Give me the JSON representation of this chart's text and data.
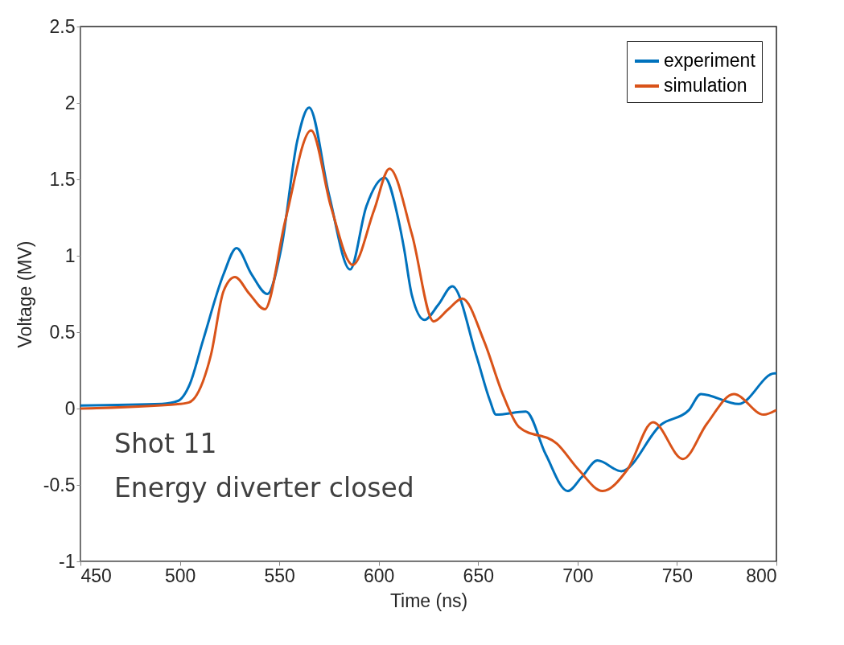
{
  "chart_data": {
    "type": "line",
    "xlabel": "Time (ns)",
    "ylabel": "Voltage (MV)",
    "xlim": [
      450,
      800
    ],
    "xticks": [
      450,
      500,
      550,
      600,
      650,
      700,
      750,
      800
    ],
    "ylim": [
      -1,
      2.5
    ],
    "yticks": [
      -1,
      -0.5,
      0,
      0.5,
      1,
      1.5,
      2,
      2.5
    ],
    "grid": false,
    "legend": "top right",
    "line_style": "solid",
    "marker": "none",
    "annotations": [
      "Shot 11",
      "Energy diverter closed"
    ],
    "series": [
      {
        "name": "experiment",
        "color": "#0072bd",
        "x": [
          450,
          491,
          499,
          505,
          511.5,
          522,
          528.5,
          536,
          544,
          551,
          559,
          565,
          575,
          585.6,
          593.7,
          603,
          610,
          612.7,
          616.7,
          623,
          630,
          637,
          649,
          656,
          659,
          674,
          684,
          695,
          702,
          710,
          722,
          742,
          756,
          762,
          781,
          799,
          800
        ],
        "values": [
          0.02,
          0.03,
          0.05,
          0.16,
          0.44,
          0.88,
          1.05,
          0.88,
          0.75,
          1.05,
          1.75,
          1.97,
          1.4,
          0.91,
          1.32,
          1.51,
          1.23,
          1.05,
          0.74,
          0.58,
          0.68,
          0.8,
          0.35,
          0.05,
          -0.04,
          -0.02,
          -0.3,
          -0.54,
          -0.45,
          -0.34,
          -0.41,
          -0.105,
          -0.01,
          0.095,
          0.03,
          0.23,
          0.23
        ]
      },
      {
        "name": "simulation",
        "color": "#d95319",
        "x": [
          450,
          500,
          504.6,
          515.6,
          522,
          527.7,
          535,
          542.7,
          553,
          566,
          576,
          587,
          597.7,
          605.4,
          616.7,
          627.6,
          635,
          642,
          653,
          662.5,
          670.5,
          689.6,
          700.5,
          712.6,
          725,
          738,
          753,
          765,
          778.6,
          793.6,
          800
        ],
        "values": [
          0.0,
          0.03,
          0.04,
          0.35,
          0.77,
          0.86,
          0.75,
          0.65,
          1.23,
          1.82,
          1.32,
          0.94,
          1.3,
          1.57,
          1.14,
          0.57,
          0.65,
          0.72,
          0.44,
          0.09,
          -0.12,
          -0.23,
          -0.4,
          -0.54,
          -0.4,
          -0.09,
          -0.33,
          -0.1,
          0.095,
          -0.04,
          -0.01
        ]
      }
    ]
  }
}
